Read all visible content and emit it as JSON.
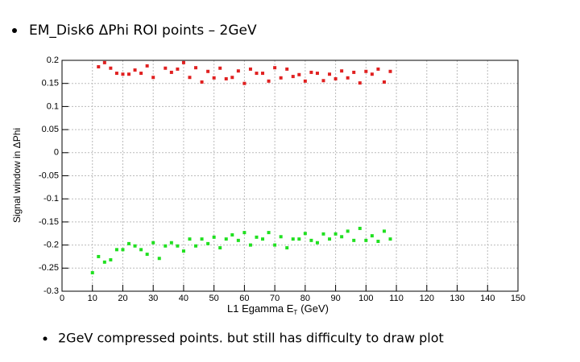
{
  "header": {
    "title": "EM_Disk6 ΔPhi ROI points – 2GeV"
  },
  "chart_data": {
    "type": "scatter",
    "ylabel": "Signal window in ΔPhi",
    "xlabel_parts": [
      "L1 Egamma E",
      "T",
      "(GeV)"
    ],
    "xlim": [
      0,
      150
    ],
    "xticks": [
      0,
      10,
      20,
      30,
      40,
      50,
      60,
      70,
      80,
      90,
      100,
      110,
      120,
      130,
      140,
      150
    ],
    "ylim": [
      -0.3,
      0.2
    ],
    "yticks": [
      0.2,
      0.15,
      0.1,
      0.05,
      0,
      -0.05,
      -0.1,
      -0.15,
      -0.2,
      -0.25,
      -0.3
    ],
    "grid": true,
    "series": [
      {
        "color": "#e02020",
        "x": [
          12,
          14,
          16,
          18,
          20,
          22,
          24,
          26,
          28,
          30,
          34,
          36,
          38,
          40,
          42,
          44,
          46,
          48,
          50,
          52,
          54,
          56,
          58,
          60,
          62,
          64,
          66,
          68,
          70,
          72,
          74,
          76,
          78,
          80,
          82,
          84,
          86,
          88,
          90,
          92,
          94,
          96,
          98,
          100,
          102,
          104,
          106,
          108
        ],
        "values": [
          0.186,
          0.195,
          0.183,
          0.172,
          0.17,
          0.17,
          0.179,
          0.172,
          0.188,
          0.163,
          0.183,
          0.174,
          0.181,
          0.195,
          0.163,
          0.184,
          0.153,
          0.176,
          0.162,
          0.183,
          0.16,
          0.163,
          0.177,
          0.15,
          0.181,
          0.172,
          0.172,
          0.155,
          0.184,
          0.162,
          0.181,
          0.165,
          0.169,
          0.155,
          0.174,
          0.172,
          0.156,
          0.17,
          0.16,
          0.177,
          0.162,
          0.174,
          0.151,
          0.176,
          0.17,
          0.181,
          0.153,
          0.176
        ]
      },
      {
        "color": "#20e020",
        "x": [
          10,
          12,
          14,
          16,
          18,
          20,
          22,
          24,
          26,
          28,
          30,
          32,
          34,
          36,
          38,
          40,
          42,
          44,
          46,
          48,
          50,
          52,
          54,
          56,
          58,
          60,
          62,
          64,
          66,
          68,
          70,
          72,
          74,
          76,
          78,
          80,
          82,
          84,
          86,
          88,
          90,
          92,
          94,
          96,
          98,
          100,
          102,
          104,
          106,
          108
        ],
        "values": [
          -0.26,
          -0.225,
          -0.237,
          -0.232,
          -0.21,
          -0.21,
          -0.197,
          -0.202,
          -0.21,
          -0.22,
          -0.195,
          -0.229,
          -0.202,
          -0.195,
          -0.202,
          -0.213,
          -0.187,
          -0.202,
          -0.187,
          -0.197,
          -0.183,
          -0.206,
          -0.187,
          -0.178,
          -0.19,
          -0.173,
          -0.2,
          -0.183,
          -0.187,
          -0.173,
          -0.2,
          -0.182,
          -0.206,
          -0.187,
          -0.187,
          -0.175,
          -0.19,
          -0.195,
          -0.176,
          -0.187,
          -0.176,
          -0.182,
          -0.17,
          -0.19,
          -0.164,
          -0.19,
          -0.18,
          -0.192,
          -0.17,
          -0.187
        ]
      }
    ]
  },
  "footer": {
    "note": "2GeV compressed points. but still has difficulty to draw plot"
  }
}
